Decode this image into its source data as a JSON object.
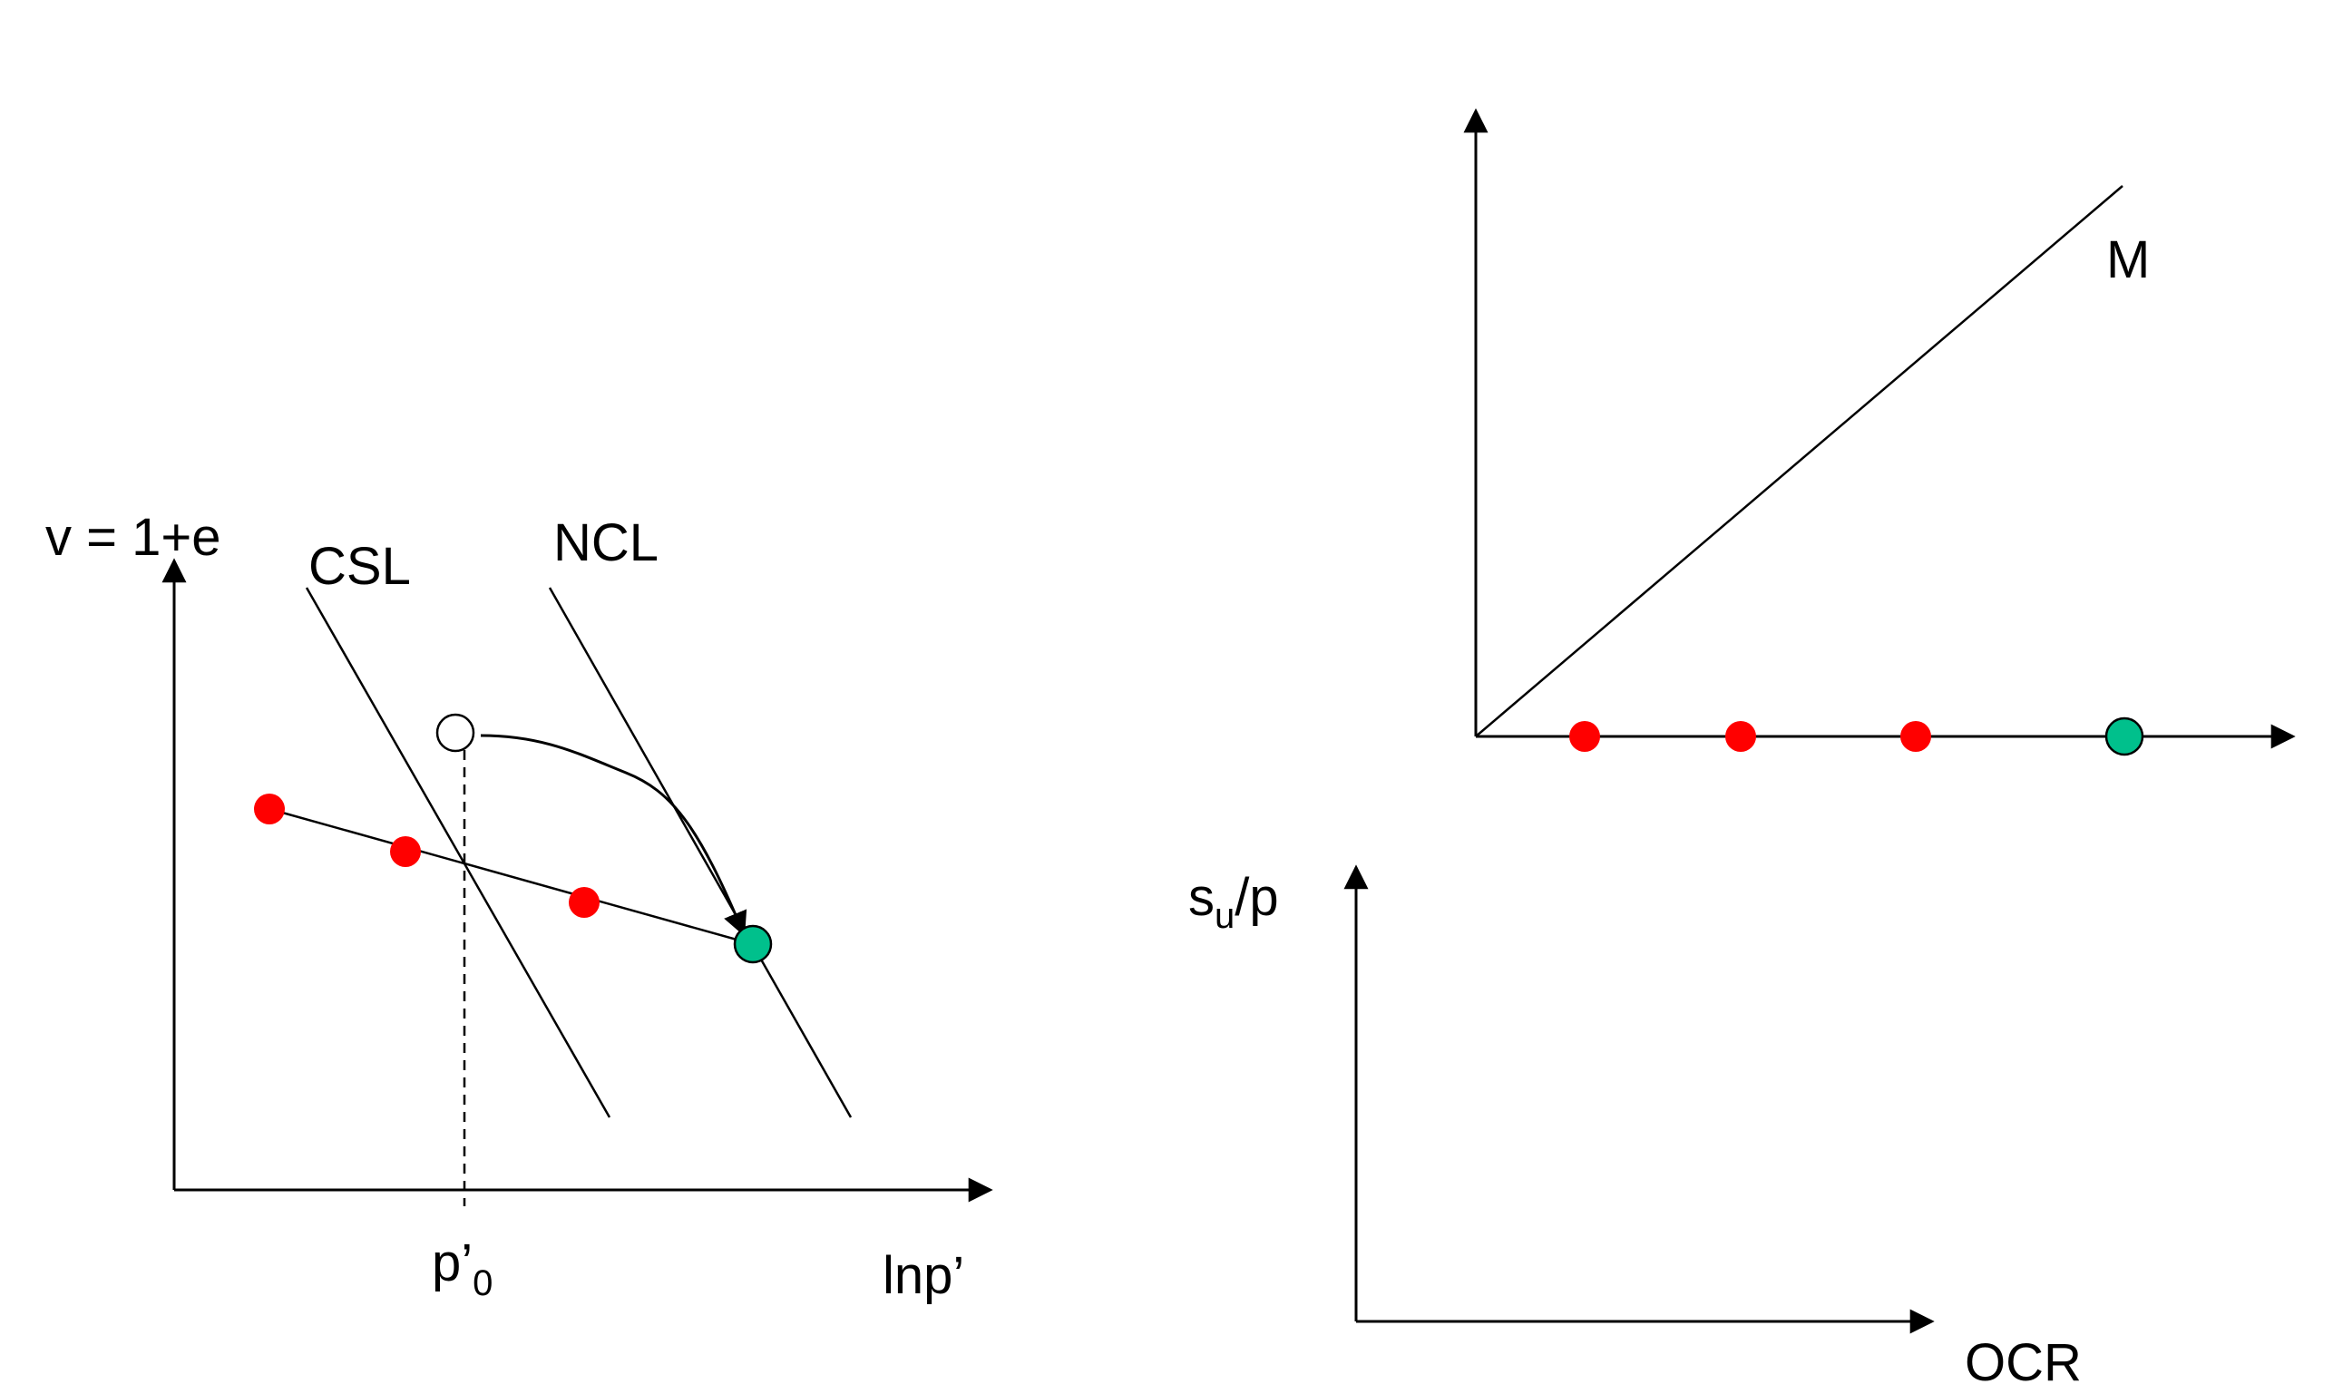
{
  "left_diagram": {
    "y_axis_label": "v = 1+e",
    "x_axis_label": "lnp’",
    "csl_label": "CSL",
    "ncl_label": "NCL",
    "p0_label_main": "p’",
    "p0_label_sub": "0"
  },
  "right_upper_diagram": {
    "line_label": "M"
  },
  "right_lower_diagram": {
    "y_axis_label_main": "s",
    "y_axis_label_sub": "u",
    "y_axis_label_tail": "/p",
    "x_axis_label": "OCR"
  },
  "colors": {
    "red_point": "#ff0000",
    "green_point": "#00c08c",
    "open_point": "#ffffff",
    "line": "#000000"
  }
}
